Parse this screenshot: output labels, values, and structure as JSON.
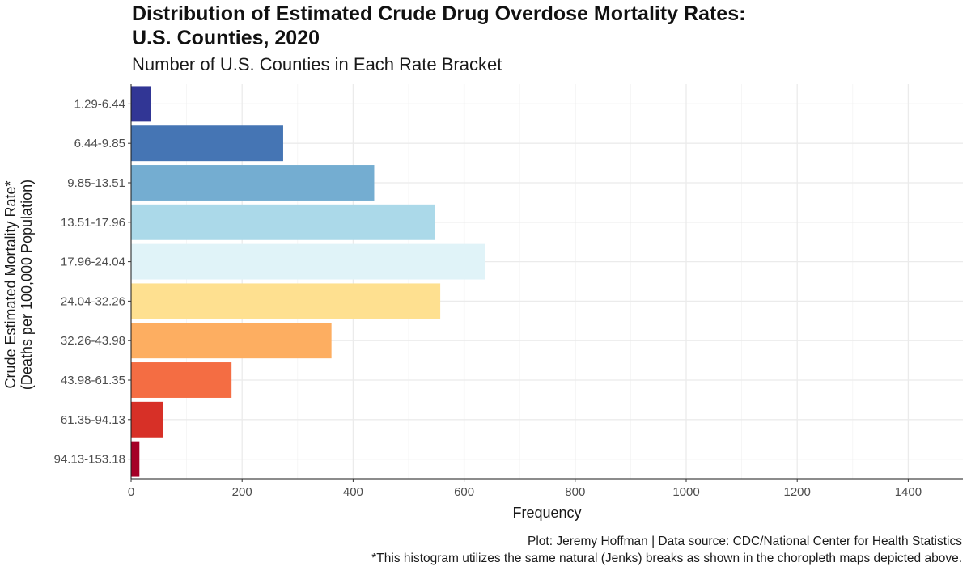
{
  "title_line1": "Distribution of Estimated Crude Drug Overdose Mortality Rates:",
  "title_line2": "U.S. Counties, 2020",
  "subtitle": "Number of U.S. Counties in Each Rate Bracket",
  "caption_line1": "Plot: Jeremy Hoffman | Data source: CDC/National Center for Health Statistics",
  "caption_line2": "*This histogram utilizes the same natural (Jenks) breaks as shown in the choropleth maps depicted above.",
  "chart_data": {
    "type": "bar",
    "orientation": "horizontal",
    "xlabel": "Frequency",
    "ylabel_line1": "Crude Estimated Mortality Rate*",
    "ylabel_line2": "(Deaths per 100,000 Population)",
    "xlim": [
      0,
      1500
    ],
    "xticks": [
      0,
      200,
      400,
      600,
      800,
      1000,
      1200,
      1400
    ],
    "grid": true,
    "legend": "none",
    "categories": [
      "1.29-6.44",
      "6.44-9.85",
      "9.85-13.51",
      "13.51-17.96",
      "17.96-24.04",
      "24.04-32.26",
      "32.26-43.98",
      "43.98-61.35",
      "61.35-94.13",
      "94.13-153.18"
    ],
    "values": [
      36,
      274,
      438,
      547,
      637,
      557,
      361,
      181,
      57,
      15
    ],
    "colors": [
      "#313695",
      "#4575b4",
      "#74add1",
      "#abd9e9",
      "#e0f3f8",
      "#fee090",
      "#fdae61",
      "#f46d43",
      "#d73027",
      "#a50026"
    ]
  }
}
